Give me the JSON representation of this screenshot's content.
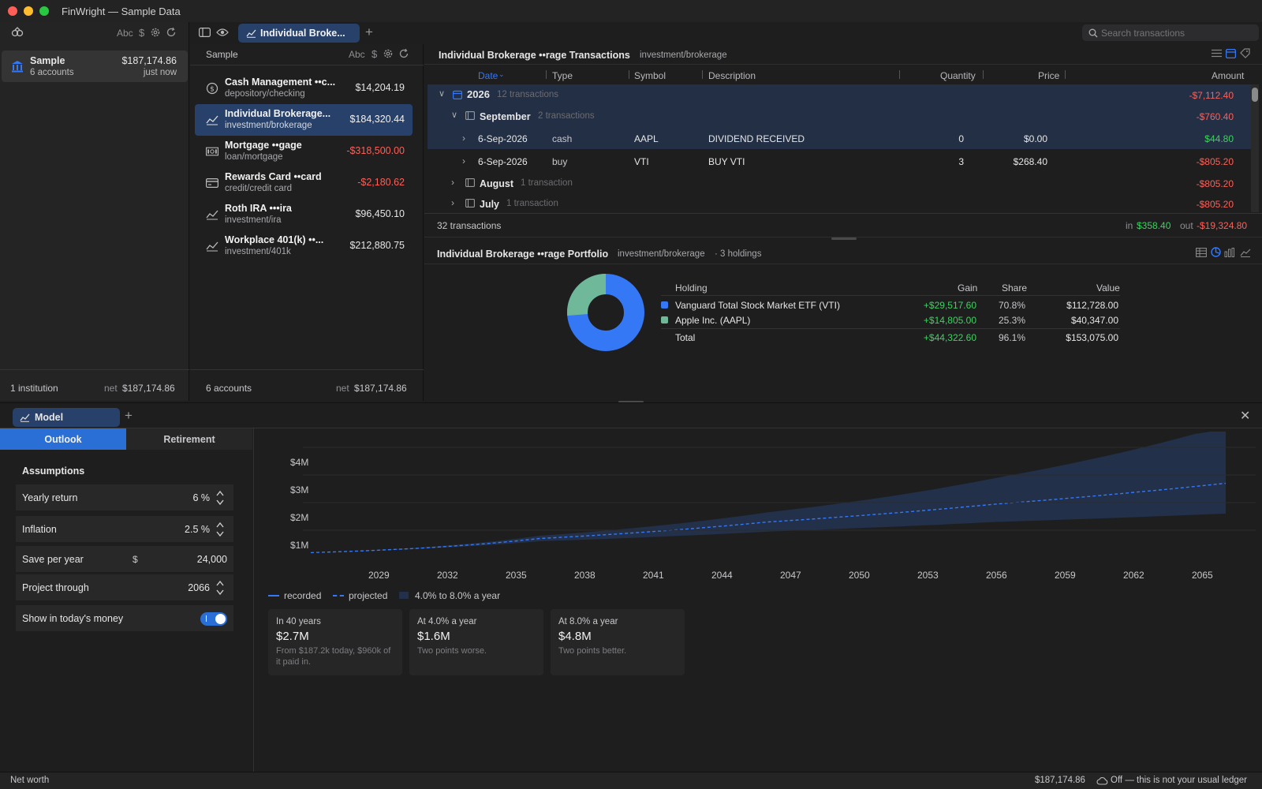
{
  "window": {
    "title": "FinWright — Sample Data"
  },
  "institutions": {
    "toolbar_abc": "Abc",
    "items": [
      {
        "name": "Sample",
        "count": "6 accounts",
        "balance": "$187,174.86",
        "updated": "just now"
      }
    ],
    "footer_count": "1 institution",
    "footer_net_label": "net",
    "footer_net_value": "$187,174.86"
  },
  "tabs": {
    "active_label": "Individual Broke..."
  },
  "accounts": {
    "header": "Sample",
    "toolbar_abc": "Abc",
    "items": [
      {
        "name": "Cash Management ••c...",
        "type": "depository/checking",
        "balance": "$14,204.19",
        "icon": "cash-icon"
      },
      {
        "name": "Individual Brokerage...",
        "type": "investment/brokerage",
        "balance": "$184,320.44",
        "icon": "trend-chart-icon"
      },
      {
        "name": "Mortgage ••gage",
        "type": "loan/mortgage",
        "balance": "-$318,500.00",
        "icon": "banknote-icon"
      },
      {
        "name": "Rewards Card ••card",
        "type": "credit/credit card",
        "balance": "-$2,180.62",
        "icon": "credit-card-icon"
      },
      {
        "name": "Roth IRA •••ira",
        "type": "investment/ira",
        "balance": "$96,450.10",
        "icon": "trend-chart-icon"
      },
      {
        "name": "Workplace 401(k) ••...",
        "type": "investment/401k",
        "balance": "$212,880.75",
        "icon": "trend-chart-icon"
      }
    ],
    "footer_count": "6 accounts",
    "footer_net_label": "net",
    "footer_net_value": "$187,174.86"
  },
  "search": {
    "placeholder": "Search transactions"
  },
  "transactions": {
    "title": "Individual Brokerage ••rage Transactions",
    "subtitle": "investment/brokerage",
    "columns": [
      "Date",
      "Type",
      "Symbol",
      "Description",
      "Quantity",
      "Price",
      "Amount"
    ],
    "year": {
      "label": "2026",
      "count": "12 transactions",
      "amount": "-$7,112.40"
    },
    "sep": {
      "label": "September",
      "count": "2 transactions",
      "amount": "-$760.40"
    },
    "rows": [
      {
        "date": "6-Sep-2026",
        "type": "cash",
        "symbol": "AAPL",
        "description": "DIVIDEND RECEIVED",
        "quantity": "0",
        "price": "$0.00",
        "amount": "$44.80"
      },
      {
        "date": "6-Sep-2026",
        "type": "buy",
        "symbol": "VTI",
        "description": "BUY VTI",
        "quantity": "3",
        "price": "$268.40",
        "amount": "-$805.20"
      }
    ],
    "aug": {
      "label": "August",
      "count": "1 transaction",
      "amount": "-$805.20"
    },
    "jul": {
      "label": "July",
      "count": "1 transaction",
      "amount": "-$805.20"
    },
    "footer_count": "32 transactions",
    "in_label": "in",
    "in_value": "$358.40",
    "out_label": "out",
    "out_value": "-$19,324.80"
  },
  "portfolio": {
    "title": "Individual Brokerage ••rage Portfolio",
    "subtitle": "investment/brokerage",
    "holdings_count": "· 3 holdings",
    "columns": [
      "Holding",
      "Gain",
      "Share",
      "Value"
    ],
    "rows": [
      {
        "name": "Vanguard Total Stock Market ETF (VTI)",
        "gain": "+$29,517.60",
        "share": "70.8%",
        "value": "$112,728.00",
        "color": "#3478f6"
      },
      {
        "name": "Apple Inc. (AAPL)",
        "gain": "+$14,805.00",
        "share": "25.3%",
        "value": "$40,347.00",
        "color": "#6fb899"
      }
    ],
    "total": {
      "name": "Total",
      "gain": "+$44,322.60",
      "share": "96.1%",
      "value": "$153,075.00"
    }
  },
  "model": {
    "tab_label": "Model",
    "subtabs": [
      "Outlook",
      "Retirement"
    ],
    "assumptions_title": "Assumptions",
    "fields": [
      {
        "label": "Yearly return",
        "value": "6 %"
      },
      {
        "label": "Inflation",
        "value": "2.5 %"
      },
      {
        "label": "Save per year",
        "prefix": "$",
        "value": "24,000"
      },
      {
        "label": "Project through",
        "value": "2066"
      },
      {
        "label": "Show in today's money",
        "toggle": true
      }
    ],
    "legend": [
      "recorded",
      "projected",
      "4.0% to 8.0% a year"
    ],
    "cards": [
      {
        "title": "In 40 years",
        "value": "$2.7M",
        "desc": "From $187.2k today, $960k of it paid in."
      },
      {
        "title": "At 4.0% a year",
        "value": "$1.6M",
        "desc": "Two points worse."
      },
      {
        "title": "At 8.0% a year",
        "value": "$4.8M",
        "desc": "Two points better."
      }
    ]
  },
  "chart_data": {
    "type": "area",
    "x_ticks": [
      "2029",
      "2032",
      "2035",
      "2038",
      "2041",
      "2044",
      "2047",
      "2050",
      "2053",
      "2056",
      "2059",
      "2062",
      "2065"
    ],
    "y_ticks": [
      "$1M",
      "$2M",
      "$3M",
      "$4M"
    ],
    "xlim": [
      2026,
      2066
    ],
    "ylim": [
      0,
      4500000
    ],
    "projected": {
      "x": [
        2026,
        2036,
        2046,
        2056,
        2066
      ],
      "y": [
        187200,
        700000,
        1300000,
        1950000,
        2700000
      ]
    },
    "band_low": {
      "x": [
        2026,
        2036,
        2046,
        2056,
        2066
      ],
      "y": [
        187200,
        600000,
        950000,
        1300000,
        1600000
      ]
    },
    "band_high": {
      "x": [
        2026,
        2036,
        2046,
        2056,
        2066
      ],
      "y": [
        187200,
        800000,
        1650000,
        2900000,
        4800000
      ]
    },
    "colors": {
      "line": "#3478f6",
      "band": "#22304a"
    }
  },
  "status": {
    "left": "Net worth",
    "value": "$187,174.86",
    "cloud": "Off — this is not your usual ledger"
  }
}
